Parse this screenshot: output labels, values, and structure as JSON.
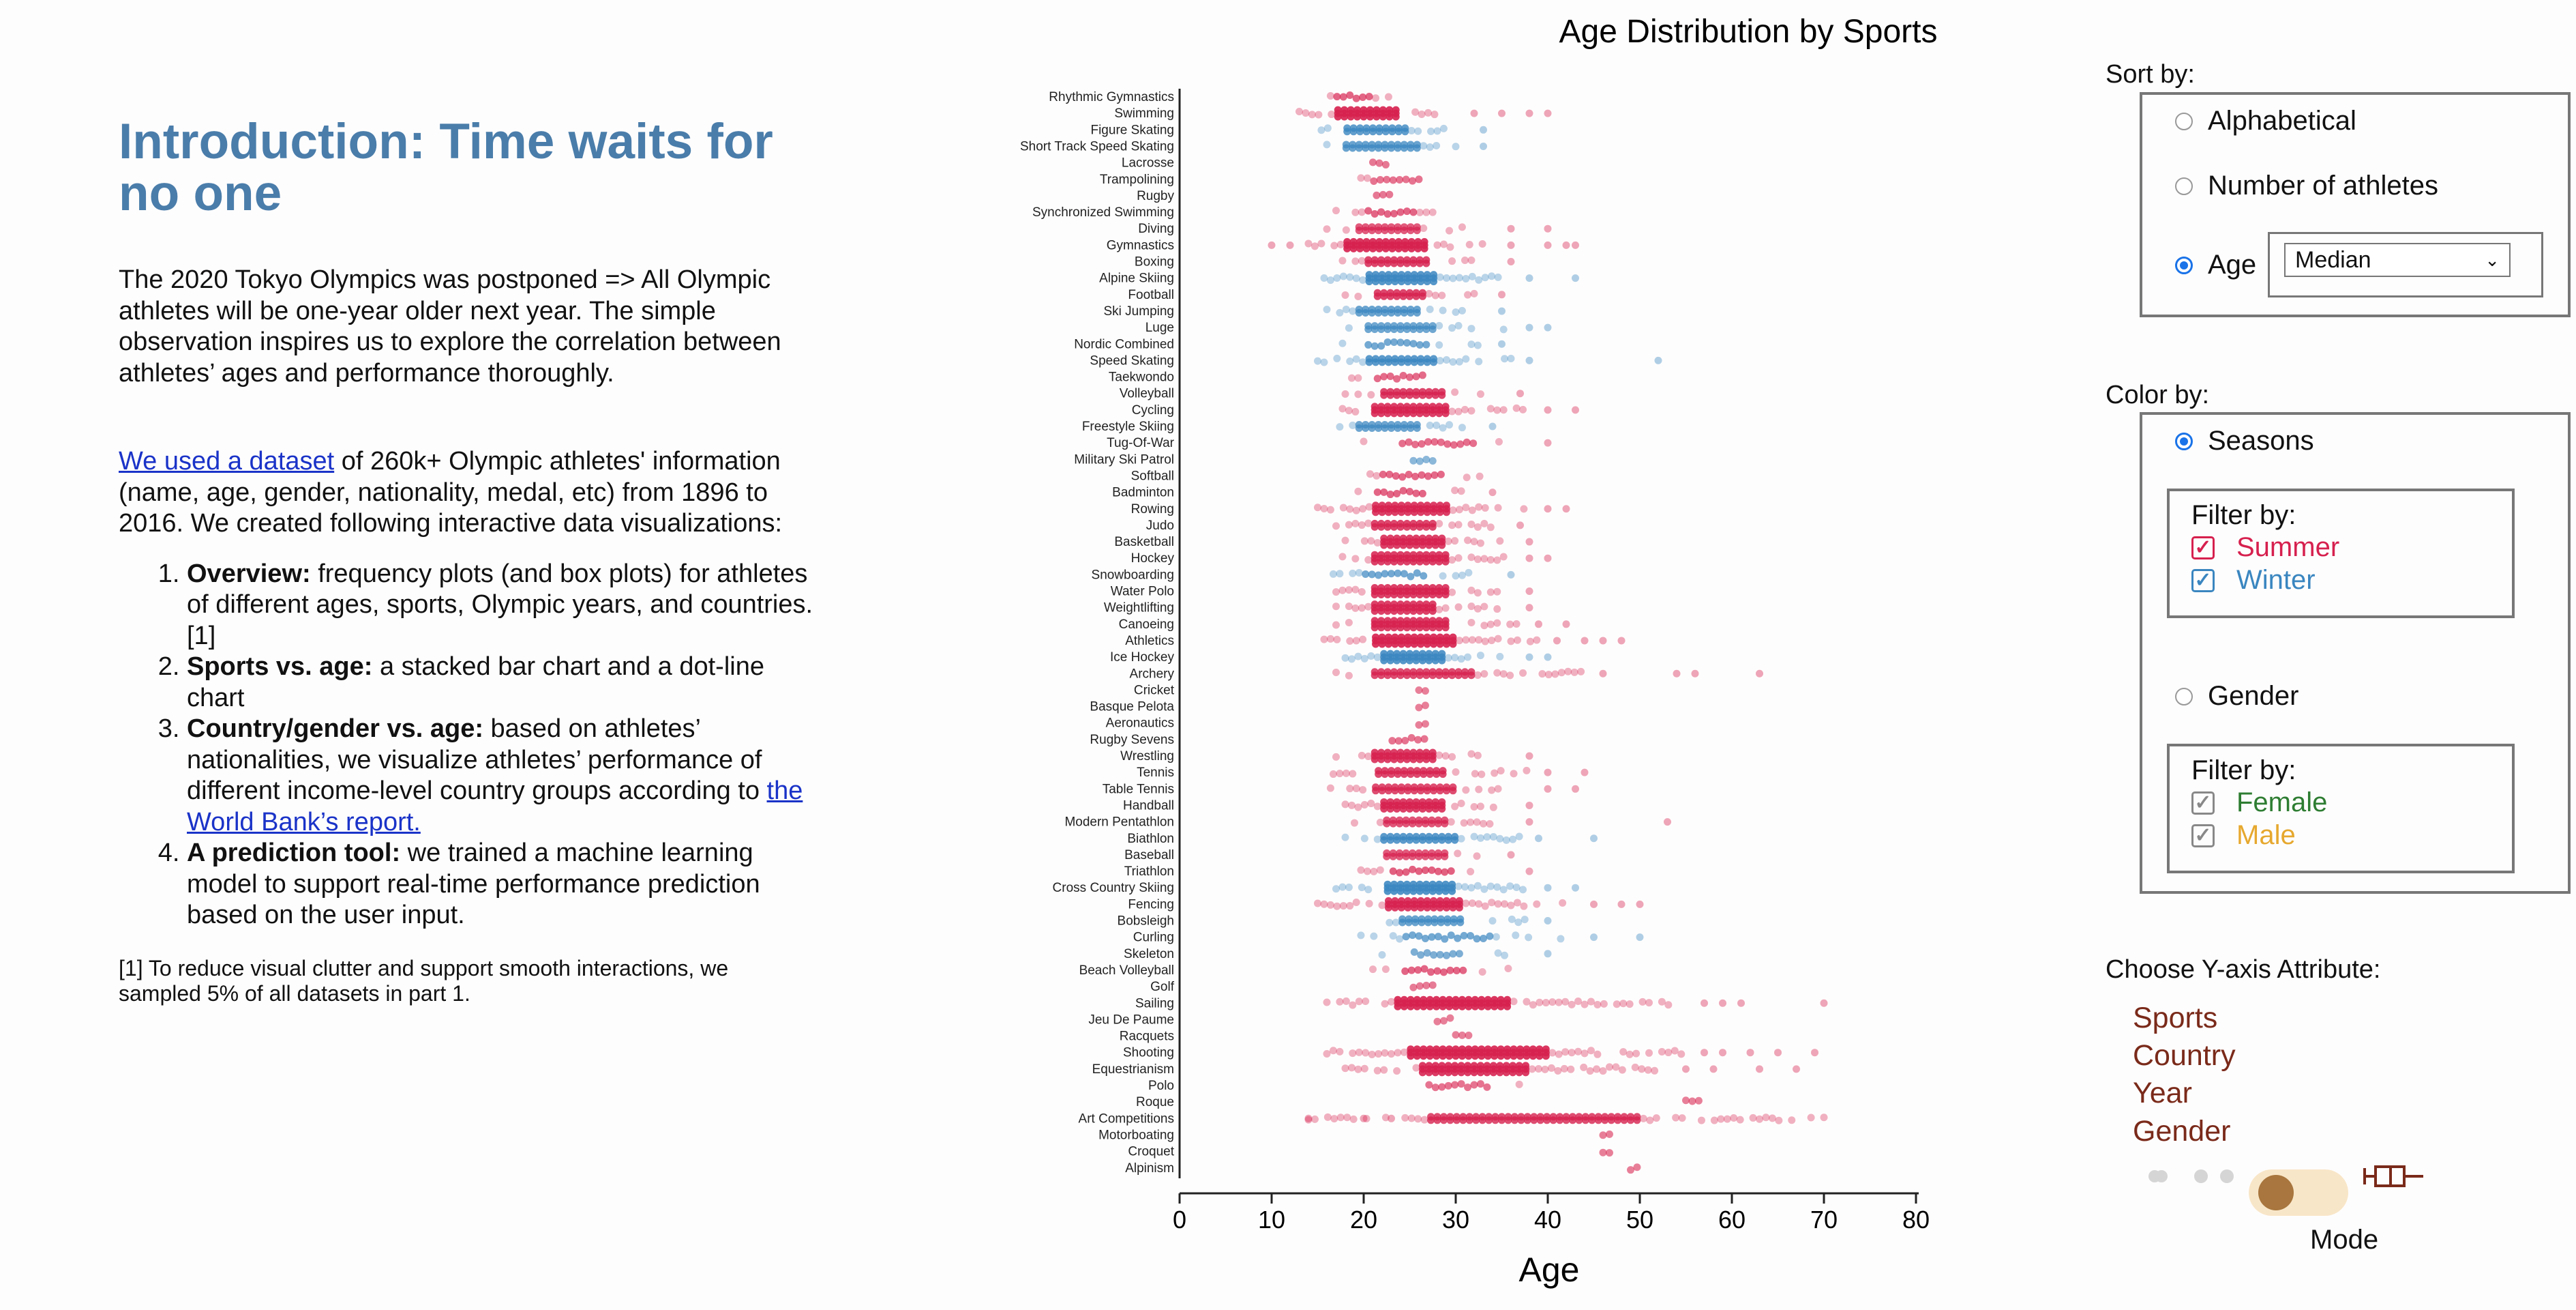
{
  "intro": {
    "title": "Introduction: Time waits for no one",
    "para1": "The 2020 Tokyo Olympics was postponed => All Olympic athletes will be one-year older next year. The simple observation inspires us to explore the correlation between athletes’ ages and performance thoroughly.",
    "link1": "We used a dataset",
    "para2_rest": " of 260k+ Olympic athletes' information (name, age, gender, nationality, medal, etc) from 1896 to 2016. We created following interactive data visualizations:",
    "items": [
      {
        "bold": "Overview:",
        "text": " frequency plots (and box plots) for athletes of different ages, sports, Olympic years, and countries.[1]"
      },
      {
        "bold": "Sports vs. age:",
        "text": " a stacked bar chart and a dot-line chart"
      },
      {
        "bold": "Country/gender vs. age:",
        "text": " based on athletes’ nationalities, we visualize athletes’ performance of different income-level country groups according to "
      },
      {
        "bold": "A prediction tool:",
        "text": " we trained a machine learning model to support real-time performance prediction based on the user input."
      }
    ],
    "wb_link": "the World Bank’s report.",
    "footnote": "[1] To reduce visual clutter and support smooth interactions, we sampled 5% of all datasets in part 1."
  },
  "controls": {
    "sort_label": "Sort by:",
    "sort_options": [
      "Alphabetical",
      "Number of athletes",
      "Age"
    ],
    "sort_selected": "Age",
    "age_select": "Median",
    "color_label": "Color by:",
    "seasons": "Seasons",
    "filter_label": "Filter by:",
    "summer": "Summer",
    "winter": "Winter",
    "gender": "Gender",
    "female": "Female",
    "male": "Male",
    "yaxis_label": "Choose Y-axis Attribute:",
    "yaxis_options": [
      "Sports",
      "Country",
      "Year",
      "Gender"
    ],
    "mode_label": "Mode",
    "colors": {
      "summer": "#d6204e",
      "winter": "#3a86c0",
      "female": "#2e7d32",
      "male": "#e6a82e",
      "attr": "#7a2a1a"
    }
  },
  "chart_data": {
    "type": "scatter",
    "title": "Age Distribution by Sports",
    "xlabel": "Age",
    "xlim": [
      0,
      80
    ],
    "xticks": [
      0,
      10,
      20,
      30,
      40,
      50,
      60,
      70,
      80
    ],
    "series_names": [
      "Summer",
      "Winter"
    ],
    "sports": [
      {
        "name": "Rhythmic Gymnastics",
        "season": "summer",
        "min": 15,
        "max": 23,
        "q1": 17,
        "q3": 21,
        "density": 0.4,
        "outliers": []
      },
      {
        "name": "Swimming",
        "season": "summer",
        "min": 13,
        "max": 28,
        "q1": 17,
        "q3": 24,
        "density": 1.0,
        "outliers": [
          32,
          35,
          38,
          40
        ]
      },
      {
        "name": "Figure Skating",
        "season": "winter",
        "min": 14,
        "max": 30,
        "q1": 18,
        "q3": 25,
        "density": 0.7,
        "outliers": [
          33
        ]
      },
      {
        "name": "Short Track Speed Skating",
        "season": "winter",
        "min": 16,
        "max": 30,
        "q1": 18,
        "q3": 26,
        "density": 0.6,
        "outliers": [
          33
        ]
      },
      {
        "name": "Lacrosse",
        "season": "summer",
        "min": 21,
        "max": 24,
        "q1": 21,
        "q3": 23,
        "density": 0.15,
        "outliers": []
      },
      {
        "name": "Trampolining",
        "season": "summer",
        "min": 19,
        "max": 28,
        "q1": 21,
        "q3": 26,
        "density": 0.2,
        "outliers": []
      },
      {
        "name": "Rugby",
        "season": "summer",
        "min": 20,
        "max": 24,
        "q1": 21,
        "q3": 23,
        "density": 0.15,
        "outliers": []
      },
      {
        "name": "Synchronized Swimming",
        "season": "summer",
        "min": 17,
        "max": 30,
        "q1": 20,
        "q3": 26,
        "density": 0.4,
        "outliers": []
      },
      {
        "name": "Diving",
        "season": "summer",
        "min": 16,
        "max": 32,
        "q1": 19,
        "q3": 26,
        "density": 0.55,
        "outliers": [
          36,
          40
        ]
      },
      {
        "name": "Gymnastics",
        "season": "summer",
        "min": 14,
        "max": 33,
        "q1": 18,
        "q3": 27,
        "density": 1.0,
        "outliers": [
          10,
          12,
          36,
          40,
          42,
          43
        ]
      },
      {
        "name": "Boxing",
        "season": "summer",
        "min": 17,
        "max": 32,
        "q1": 20,
        "q3": 27,
        "density": 0.8,
        "outliers": [
          36
        ]
      },
      {
        "name": "Alpine Skiing",
        "season": "winter",
        "min": 15,
        "max": 35,
        "q1": 20,
        "q3": 28,
        "density": 0.9,
        "outliers": [
          38,
          43
        ]
      },
      {
        "name": "Football",
        "season": "summer",
        "min": 18,
        "max": 32,
        "q1": 21,
        "q3": 27,
        "density": 0.8,
        "outliers": [
          35
        ]
      },
      {
        "name": "Ski Jumping",
        "season": "winter",
        "min": 16,
        "max": 32,
        "q1": 19,
        "q3": 26,
        "density": 0.6,
        "outliers": [
          35
        ]
      },
      {
        "name": "Luge",
        "season": "winter",
        "min": 17,
        "max": 36,
        "q1": 20,
        "q3": 28,
        "density": 0.5,
        "outliers": [
          38,
          40
        ]
      },
      {
        "name": "Nordic Combined",
        "season": "winter",
        "min": 17,
        "max": 33,
        "q1": 20,
        "q3": 27,
        "density": 0.45,
        "outliers": [
          35
        ]
      },
      {
        "name": "Speed Skating",
        "season": "winter",
        "min": 15,
        "max": 36,
        "q1": 20,
        "q3": 28,
        "density": 0.8,
        "outliers": [
          38,
          52
        ]
      },
      {
        "name": "Taekwondo",
        "season": "summer",
        "min": 18,
        "max": 30,
        "q1": 21,
        "q3": 27,
        "density": 0.3,
        "outliers": []
      },
      {
        "name": "Volleyball",
        "season": "summer",
        "min": 18,
        "max": 34,
        "q1": 22,
        "q3": 29,
        "density": 0.8,
        "outliers": [
          37
        ]
      },
      {
        "name": "Cycling",
        "season": "summer",
        "min": 17,
        "max": 38,
        "q1": 21,
        "q3": 29,
        "density": 0.9,
        "outliers": [
          40,
          43
        ]
      },
      {
        "name": "Freestyle Skiing",
        "season": "winter",
        "min": 16,
        "max": 31,
        "q1": 19,
        "q3": 26,
        "density": 0.55,
        "outliers": [
          34
        ]
      },
      {
        "name": "Tug-Of-War",
        "season": "summer",
        "min": 20,
        "max": 35,
        "q1": 24,
        "q3": 32,
        "density": 0.25,
        "outliers": [
          40
        ]
      },
      {
        "name": "Military Ski Patrol",
        "season": "winter",
        "min": 24,
        "max": 29,
        "q1": 25,
        "q3": 28,
        "density": 0.1,
        "outliers": []
      },
      {
        "name": "Softball",
        "season": "summer",
        "min": 20,
        "max": 33,
        "q1": 22,
        "q3": 29,
        "density": 0.35,
        "outliers": []
      },
      {
        "name": "Badminton",
        "season": "summer",
        "min": 18,
        "max": 32,
        "q1": 21,
        "q3": 27,
        "density": 0.4,
        "outliers": [
          34
        ]
      },
      {
        "name": "Rowing",
        "season": "summer",
        "min": 15,
        "max": 38,
        "q1": 21,
        "q3": 29,
        "density": 0.9,
        "outliers": [
          40,
          42
        ]
      },
      {
        "name": "Judo",
        "season": "summer",
        "min": 17,
        "max": 34,
        "q1": 21,
        "q3": 28,
        "density": 0.8,
        "outliers": [
          37
        ]
      },
      {
        "name": "Basketball",
        "season": "summer",
        "min": 18,
        "max": 35,
        "q1": 22,
        "q3": 29,
        "density": 0.85,
        "outliers": [
          38
        ]
      },
      {
        "name": "Hockey",
        "season": "summer",
        "min": 17,
        "max": 36,
        "q1": 21,
        "q3": 29,
        "density": 0.85,
        "outliers": [
          38,
          40
        ]
      },
      {
        "name": "Snowboarding",
        "season": "winter",
        "min": 16,
        "max": 33,
        "q1": 20,
        "q3": 27,
        "density": 0.45,
        "outliers": [
          36
        ]
      },
      {
        "name": "Water Polo",
        "season": "summer",
        "min": 17,
        "max": 36,
        "q1": 21,
        "q3": 29,
        "density": 0.85,
        "outliers": [
          38
        ]
      },
      {
        "name": "Weightlifting",
        "season": "summer",
        "min": 17,
        "max": 35,
        "q1": 21,
        "q3": 28,
        "density": 0.85,
        "outliers": [
          38
        ]
      },
      {
        "name": "Canoeing",
        "season": "summer",
        "min": 17,
        "max": 37,
        "q1": 21,
        "q3": 29,
        "density": 0.85,
        "outliers": [
          39,
          42
        ]
      },
      {
        "name": "Athletics",
        "season": "summer",
        "min": 15,
        "max": 39,
        "q1": 21,
        "q3": 30,
        "density": 1.0,
        "outliers": [
          41,
          44,
          46,
          48
        ]
      },
      {
        "name": "Ice Hockey",
        "season": "winter",
        "min": 18,
        "max": 35,
        "q1": 22,
        "q3": 29,
        "density": 0.9,
        "outliers": [
          38,
          40
        ]
      },
      {
        "name": "Archery",
        "season": "summer",
        "min": 17,
        "max": 44,
        "q1": 21,
        "q3": 32,
        "density": 0.7,
        "outliers": [
          46,
          54,
          56,
          63
        ]
      },
      {
        "name": "Cricket",
        "season": "summer",
        "min": 26,
        "max": 28,
        "q1": 26,
        "q3": 27,
        "density": 0.05,
        "outliers": []
      },
      {
        "name": "Basque Pelota",
        "season": "summer",
        "min": 26,
        "max": 27,
        "q1": 26,
        "q3": 27,
        "density": 0.05,
        "outliers": []
      },
      {
        "name": "Aeronautics",
        "season": "summer",
        "min": 26,
        "max": 27,
        "q1": 26,
        "q3": 27,
        "density": 0.05,
        "outliers": []
      },
      {
        "name": "Rugby Sevens",
        "season": "summer",
        "min": 21,
        "max": 30,
        "q1": 23,
        "q3": 27,
        "density": 0.2,
        "outliers": []
      },
      {
        "name": "Wrestling",
        "season": "summer",
        "min": 17,
        "max": 35,
        "q1": 21,
        "q3": 28,
        "density": 0.85,
        "outliers": [
          38
        ]
      },
      {
        "name": "Tennis",
        "season": "summer",
        "min": 16,
        "max": 38,
        "q1": 21,
        "q3": 29,
        "density": 0.75,
        "outliers": [
          40,
          44
        ]
      },
      {
        "name": "Table Tennis",
        "season": "summer",
        "min": 15,
        "max": 38,
        "q1": 21,
        "q3": 30,
        "density": 0.7,
        "outliers": [
          40,
          43
        ]
      },
      {
        "name": "Handball",
        "season": "summer",
        "min": 18,
        "max": 35,
        "q1": 22,
        "q3": 29,
        "density": 0.85,
        "outliers": [
          38
        ]
      },
      {
        "name": "Modern Pentathlon",
        "season": "summer",
        "min": 19,
        "max": 35,
        "q1": 22,
        "q3": 29,
        "density": 0.6,
        "outliers": [
          38,
          53
        ]
      },
      {
        "name": "Biathlon",
        "season": "winter",
        "min": 18,
        "max": 37,
        "q1": 22,
        "q3": 30,
        "density": 0.8,
        "outliers": [
          39,
          45
        ]
      },
      {
        "name": "Baseball",
        "season": "summer",
        "min": 19,
        "max": 33,
        "q1": 22,
        "q3": 29,
        "density": 0.55,
        "outliers": [
          36
        ]
      },
      {
        "name": "Triathlon",
        "season": "summer",
        "min": 19,
        "max": 35,
        "q1": 23,
        "q3": 30,
        "density": 0.45,
        "outliers": [
          38
        ]
      },
      {
        "name": "Cross Country Skiing",
        "season": "winter",
        "min": 17,
        "max": 38,
        "q1": 22,
        "q3": 30,
        "density": 0.95,
        "outliers": [
          40,
          43
        ]
      },
      {
        "name": "Fencing",
        "season": "summer",
        "min": 15,
        "max": 42,
        "q1": 22,
        "q3": 31,
        "density": 0.9,
        "outliers": [
          45,
          48,
          50
        ]
      },
      {
        "name": "Bobsleigh",
        "season": "winter",
        "min": 20,
        "max": 38,
        "q1": 24,
        "q3": 31,
        "density": 0.6,
        "outliers": [
          40
        ]
      },
      {
        "name": "Curling",
        "season": "winter",
        "min": 19,
        "max": 42,
        "q1": 24,
        "q3": 34,
        "density": 0.45,
        "outliers": [
          45,
          50
        ]
      },
      {
        "name": "Skeleton",
        "season": "winter",
        "min": 22,
        "max": 36,
        "q1": 25,
        "q3": 31,
        "density": 0.3,
        "outliers": [
          40
        ]
      },
      {
        "name": "Beach Volleyball",
        "season": "summer",
        "min": 21,
        "max": 36,
        "q1": 24,
        "q3": 31,
        "density": 0.4,
        "outliers": []
      },
      {
        "name": "Golf",
        "season": "summer",
        "min": 24,
        "max": 30,
        "q1": 25,
        "q3": 28,
        "density": 0.1,
        "outliers": []
      },
      {
        "name": "Sailing",
        "season": "summer",
        "min": 16,
        "max": 55,
        "q1": 23,
        "q3": 36,
        "density": 1.0,
        "outliers": [
          57,
          59,
          61,
          70
        ]
      },
      {
        "name": "Jeu De Paume",
        "season": "summer",
        "min": 28,
        "max": 30,
        "q1": 28,
        "q3": 30,
        "density": 0.05,
        "outliers": []
      },
      {
        "name": "Racquets",
        "season": "summer",
        "min": 30,
        "max": 32,
        "q1": 30,
        "q3": 32,
        "density": 0.05,
        "outliers": []
      },
      {
        "name": "Shooting",
        "season": "summer",
        "min": 16,
        "max": 55,
        "q1": 25,
        "q3": 40,
        "density": 1.0,
        "outliers": [
          57,
          59,
          62,
          65,
          69
        ]
      },
      {
        "name": "Equestrianism",
        "season": "summer",
        "min": 18,
        "max": 52,
        "q1": 26,
        "q3": 38,
        "density": 0.95,
        "outliers": [
          55,
          58,
          63,
          67
        ]
      },
      {
        "name": "Polo",
        "season": "summer",
        "min": 25,
        "max": 38,
        "q1": 27,
        "q3": 34,
        "density": 0.2,
        "outliers": []
      },
      {
        "name": "Roque",
        "season": "summer",
        "min": 55,
        "max": 57,
        "q1": 55,
        "q3": 57,
        "density": 0.05,
        "outliers": []
      },
      {
        "name": "Art Competitions",
        "season": "summer",
        "min": 14,
        "max": 72,
        "q1": 27,
        "q3": 50,
        "density": 0.7,
        "outliers": [
          14,
          20,
          23
        ]
      },
      {
        "name": "Motorboating",
        "season": "summer",
        "min": 46,
        "max": 47,
        "q1": 46,
        "q3": 47,
        "density": 0.05,
        "outliers": []
      },
      {
        "name": "Croquet",
        "season": "summer",
        "min": 46,
        "max": 47,
        "q1": 46,
        "q3": 47,
        "density": 0.05,
        "outliers": []
      },
      {
        "name": "Alpinism",
        "season": "summer",
        "min": 49,
        "max": 50,
        "q1": 49,
        "q3": 50,
        "density": 0.05,
        "outliers": []
      }
    ]
  }
}
